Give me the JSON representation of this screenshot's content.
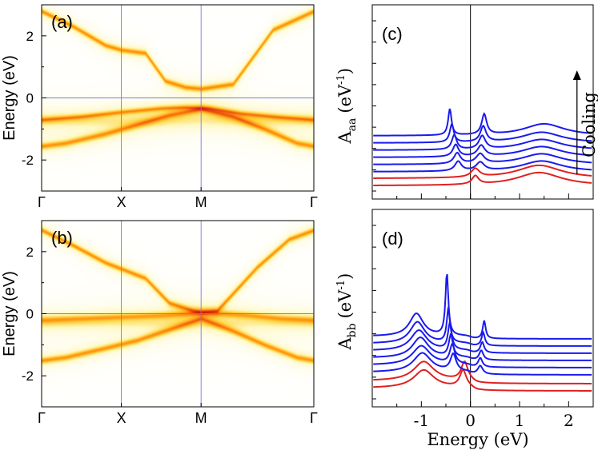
{
  "chart_data": [
    {
      "panel": "(a)",
      "type": "heatmap",
      "description": "Band-structure spectral intensity along high-symmetry path",
      "ylabel": "Energy (eV)",
      "y_ticks": [
        2,
        0,
        -2
      ],
      "ylim": [
        -3,
        3
      ],
      "k_points": [
        "Γ",
        "X",
        "M",
        "Γ"
      ],
      "k_positions": [
        0,
        1,
        2,
        3.414
      ],
      "zero_line": 0,
      "colormap": [
        "#ffffff",
        "#fff8c0",
        "#ffd23a",
        "#ff8a10",
        "#d42010",
        "#5a0000"
      ],
      "bands": [
        {
          "k": [
            0,
            0.4,
            0.8,
            1.0,
            1.3,
            1.55,
            1.8,
            2.0,
            2.4,
            2.9,
            3.414
          ],
          "e": [
            2.8,
            2.3,
            1.7,
            1.55,
            1.45,
            0.55,
            0.35,
            0.3,
            0.45,
            2.2,
            2.8
          ],
          "w": 0.07,
          "amp": 1.0
        },
        {
          "k": [
            0,
            0.5,
            1.0,
            1.5,
            1.8,
            2.1,
            2.5,
            3.0,
            3.414
          ],
          "e": [
            -0.7,
            -0.6,
            -0.45,
            -0.33,
            -0.3,
            -0.33,
            -0.5,
            -0.62,
            -0.7
          ],
          "w": 0.06,
          "amp": 0.95
        },
        {
          "k": [
            0,
            0.3,
            0.8,
            1.2,
            1.6,
            2.0,
            2.4,
            2.8,
            3.2,
            3.414
          ],
          "e": [
            -1.55,
            -1.45,
            -1.15,
            -0.85,
            -0.55,
            -0.35,
            -0.6,
            -1.0,
            -1.45,
            -1.55
          ],
          "w": 0.08,
          "amp": 0.95
        },
        {
          "k": [
            0,
            1.0,
            2.0,
            3.0,
            3.414
          ],
          "e": [
            -0.72,
            -0.75,
            -0.7,
            -0.72,
            -0.72
          ],
          "w": 0.22,
          "amp": 0.28
        }
      ]
    },
    {
      "panel": "(b)",
      "type": "heatmap",
      "description": "Band-structure spectral intensity along high-symmetry path",
      "ylabel": "Energy (eV)",
      "y_ticks": [
        2,
        0,
        -2
      ],
      "ylim": [
        -3,
        3
      ],
      "k_points": [
        "Γ",
        "X",
        "M",
        "Γ"
      ],
      "k_positions": [
        0,
        1,
        2,
        3.414
      ],
      "zero_line": 0,
      "colormap": [
        "#ffffff",
        "#fff8c0",
        "#ffd23a",
        "#ff8a10",
        "#d42010",
        "#5a0000"
      ],
      "bands": [
        {
          "k": [
            0,
            0.4,
            0.8,
            1.0,
            1.3,
            1.6,
            1.9,
            2.0,
            2.2,
            2.7,
            3.1,
            3.414
          ],
          "e": [
            2.7,
            2.2,
            1.65,
            1.45,
            1.15,
            0.35,
            0.1,
            0.05,
            0.1,
            1.5,
            2.4,
            2.7
          ],
          "w": 0.07,
          "amp": 1.0
        },
        {
          "k": [
            0,
            0.5,
            1.0,
            1.5,
            1.8,
            2.0,
            2.2,
            2.6,
            3.0,
            3.414
          ],
          "e": [
            -0.2,
            -0.15,
            -0.1,
            -0.05,
            0.0,
            0.05,
            0.02,
            -0.05,
            -0.15,
            -0.2
          ],
          "w": 0.09,
          "amp": 0.8
        },
        {
          "k": [
            0,
            0.3,
            0.8,
            1.2,
            1.6,
            2.0,
            2.4,
            2.8,
            3.2,
            3.414
          ],
          "e": [
            -1.5,
            -1.4,
            -1.1,
            -0.85,
            -0.5,
            -0.15,
            -0.55,
            -1.0,
            -1.4,
            -1.5
          ],
          "w": 0.08,
          "amp": 0.95
        },
        {
          "k": [
            0,
            1.0,
            2.0,
            3.0,
            3.414
          ],
          "e": [
            -0.3,
            -0.3,
            -0.3,
            -0.3,
            -0.3
          ],
          "w": 0.2,
          "amp": 0.22
        }
      ]
    },
    {
      "panel": "(c)",
      "type": "line",
      "ylabel_main": "A",
      "ylabel_sub": "aa",
      "ylabel_unit_open": "(eV",
      "ylabel_exp": "-1",
      "ylabel_unit_close": ")",
      "annotation": "Cooling",
      "xlim": [
        -2,
        2.5
      ],
      "zero_line": 0,
      "curves": [
        {
          "color": "#e02020",
          "offset": 0.0,
          "model": [
            {
              "c": 0.1,
              "w": 0.08,
              "a": 0.35
            },
            {
              "c": 1.4,
              "w": 0.55,
              "a": 0.55
            }
          ],
          "base": 0.12
        },
        {
          "color": "#e02020",
          "offset": 0.3,
          "model": [
            {
              "c": 0.1,
              "w": 0.1,
              "a": 0.35
            },
            {
              "c": 1.4,
              "w": 0.55,
              "a": 0.55
            }
          ],
          "base": 0.12
        },
        {
          "color": "#1a1aee",
          "offset": 0.6,
          "model": [
            {
              "c": -0.25,
              "w": 0.08,
              "a": 0.4
            },
            {
              "c": 0.2,
              "w": 0.1,
              "a": 0.35
            },
            {
              "c": 1.45,
              "w": 0.5,
              "a": 0.45
            }
          ],
          "base": 0.1
        },
        {
          "color": "#1a1aee",
          "offset": 0.9,
          "model": [
            {
              "c": -0.27,
              "w": 0.08,
              "a": 0.45
            },
            {
              "c": 0.2,
              "w": 0.1,
              "a": 0.4
            },
            {
              "c": 1.45,
              "w": 0.5,
              "a": 0.45
            }
          ],
          "base": 0.1
        },
        {
          "color": "#1a1aee",
          "offset": 1.2,
          "model": [
            {
              "c": -0.3,
              "w": 0.07,
              "a": 0.5
            },
            {
              "c": 0.22,
              "w": 0.09,
              "a": 0.45
            },
            {
              "c": 1.45,
              "w": 0.5,
              "a": 0.45
            }
          ],
          "base": 0.1
        },
        {
          "color": "#1a1aee",
          "offset": 1.5,
          "model": [
            {
              "c": -0.33,
              "w": 0.06,
              "a": 0.6
            },
            {
              "c": 0.24,
              "w": 0.08,
              "a": 0.55
            },
            {
              "c": 1.45,
              "w": 0.5,
              "a": 0.45
            }
          ],
          "base": 0.1
        },
        {
          "color": "#1a1aee",
          "offset": 1.8,
          "model": [
            {
              "c": -0.38,
              "w": 0.05,
              "a": 0.75
            },
            {
              "c": 0.26,
              "w": 0.07,
              "a": 0.65
            },
            {
              "c": 1.45,
              "w": 0.5,
              "a": 0.45
            }
          ],
          "base": 0.1
        },
        {
          "color": "#1a1aee",
          "offset": 2.1,
          "model": [
            {
              "c": -0.42,
              "w": 0.04,
              "a": 1.1
            },
            {
              "c": 0.28,
              "w": 0.06,
              "a": 0.85
            },
            {
              "c": 1.5,
              "w": 0.5,
              "a": 0.5
            }
          ],
          "base": 0.1
        }
      ]
    },
    {
      "panel": "(d)",
      "type": "line",
      "ylabel_main": "A",
      "ylabel_sub": "bb",
      "ylabel_unit_open": "(eV",
      "ylabel_exp": "-1",
      "ylabel_unit_close": ")",
      "xlabel": "Energy (eV)",
      "xlim": [
        -2,
        2.5
      ],
      "x_ticks": [
        -1,
        0,
        1,
        2
      ],
      "zero_line": 0,
      "curves": [
        {
          "color": "#e02020",
          "offset": 0.0,
          "model": [
            {
              "c": -0.95,
              "w": 0.25,
              "a": 0.75
            },
            {
              "c": -0.15,
              "w": 0.08,
              "a": 0.7
            }
          ],
          "base": 0.08,
          "step": {
            "at": 0.05,
            "lo": 0.05,
            "hi": 0.25
          }
        },
        {
          "color": "#e02020",
          "offset": 0.3,
          "model": [
            {
              "c": -0.95,
              "w": 0.25,
              "a": 0.8
            },
            {
              "c": -0.12,
              "w": 0.08,
              "a": 0.75
            }
          ],
          "base": 0.08,
          "step": {
            "at": 0.05,
            "lo": 0.05,
            "hi": 0.25
          }
        },
        {
          "color": "#1a1aee",
          "offset": 0.6,
          "model": [
            {
              "c": -0.98,
              "w": 0.22,
              "a": 0.8
            },
            {
              "c": -0.35,
              "w": 0.07,
              "a": 0.7
            },
            {
              "c": 0.2,
              "w": 0.06,
              "a": 0.35
            }
          ],
          "base": 0.08,
          "step": {
            "at": 0.0,
            "lo": 0.12,
            "hi": 0.3
          }
        },
        {
          "color": "#1a1aee",
          "offset": 0.9,
          "model": [
            {
              "c": -1.0,
              "w": 0.22,
              "a": 0.8
            },
            {
              "c": -0.37,
              "w": 0.06,
              "a": 0.8
            },
            {
              "c": 0.2,
              "w": 0.05,
              "a": 0.38
            }
          ],
          "base": 0.08,
          "step": {
            "at": 0.0,
            "lo": 0.12,
            "hi": 0.3
          }
        },
        {
          "color": "#1a1aee",
          "offset": 1.2,
          "model": [
            {
              "c": -1.02,
              "w": 0.2,
              "a": 0.85
            },
            {
              "c": -0.4,
              "w": 0.05,
              "a": 0.9
            },
            {
              "c": 0.22,
              "w": 0.05,
              "a": 0.4
            }
          ],
          "base": 0.08,
          "step": {
            "at": 0.0,
            "lo": 0.12,
            "hi": 0.3
          }
        },
        {
          "color": "#1a1aee",
          "offset": 1.5,
          "model": [
            {
              "c": -1.05,
              "w": 0.2,
              "a": 0.85
            },
            {
              "c": -0.42,
              "w": 0.045,
              "a": 1.1
            },
            {
              "c": 0.24,
              "w": 0.045,
              "a": 0.45
            }
          ],
          "base": 0.08,
          "step": {
            "at": 0.0,
            "lo": 0.12,
            "hi": 0.3
          }
        },
        {
          "color": "#1a1aee",
          "offset": 1.8,
          "model": [
            {
              "c": -1.08,
              "w": 0.18,
              "a": 0.9
            },
            {
              "c": -0.45,
              "w": 0.04,
              "a": 1.4
            },
            {
              "c": 0.26,
              "w": 0.04,
              "a": 0.55
            }
          ],
          "base": 0.08,
          "step": {
            "at": 0.0,
            "lo": 0.12,
            "hi": 0.3
          }
        },
        {
          "color": "#1a1aee",
          "offset": 2.1,
          "model": [
            {
              "c": -1.1,
              "w": 0.17,
              "a": 0.95
            },
            {
              "c": -0.48,
              "w": 0.035,
              "a": 2.6
            },
            {
              "c": 0.28,
              "w": 0.035,
              "a": 0.75
            }
          ],
          "base": 0.08,
          "step": {
            "at": 0.0,
            "lo": 0.12,
            "hi": 0.3
          }
        }
      ]
    }
  ]
}
